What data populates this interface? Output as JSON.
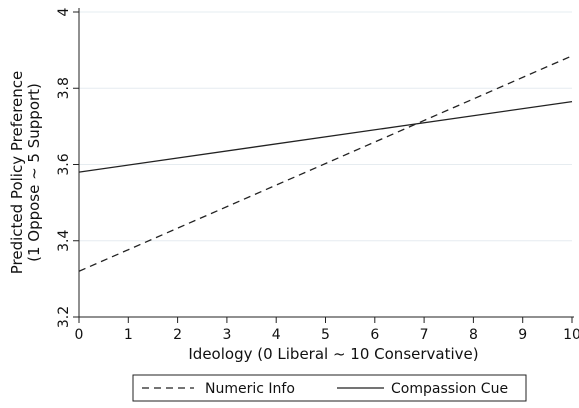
{
  "chart_data": {
    "type": "line",
    "xlabel": "Ideology (0 Liberal ~ 10 Conservative)",
    "ylabel_lines": [
      "Predicted Policy Preference",
      "(1 Oppose ~ 5 Support)"
    ],
    "xlim": [
      0,
      10
    ],
    "ylim": [
      3.2,
      4.0
    ],
    "xticks": [
      0,
      1,
      2,
      3,
      4,
      5,
      6,
      7,
      8,
      9,
      10
    ],
    "xtick_labels": [
      "0",
      "1",
      "2",
      "3",
      "4",
      "5",
      "6",
      "7",
      "8",
      "9",
      "10"
    ],
    "yticks": [
      3.2,
      3.4,
      3.6,
      3.8,
      4.0
    ],
    "ytick_labels": [
      "3.2",
      "3.4",
      "3.6",
      "3.8",
      "4"
    ],
    "grid": "horizontal",
    "legend_position": "bottom",
    "series": [
      {
        "name": "Numeric Info",
        "style": "dashed",
        "color": "#222222",
        "x": [
          0,
          10
        ],
        "y": [
          3.32,
          3.885
        ]
      },
      {
        "name": "Compassion Cue",
        "style": "solid",
        "color": "#222222",
        "x": [
          0,
          10
        ],
        "y": [
          3.58,
          3.765
        ]
      }
    ]
  }
}
